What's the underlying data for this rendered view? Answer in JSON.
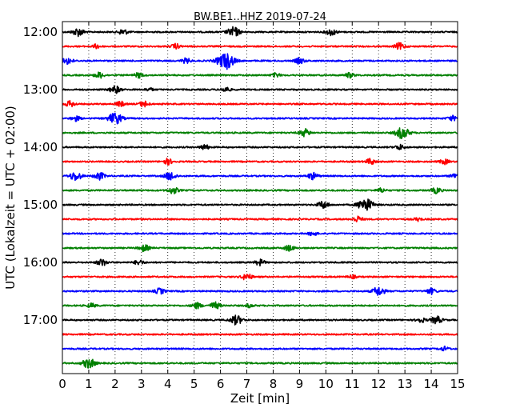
{
  "chart_data": {
    "type": "line",
    "title": "BW.BE1..HHZ 2019-07-24",
    "xlabel": "Zeit  [min]",
    "ylabel": "UTC (Lokalzeit = UTC + 02:00)",
    "xlim": [
      0,
      15
    ],
    "x_ticks": [
      "0",
      "1",
      "2",
      "3",
      "4",
      "5",
      "6",
      "7",
      "8",
      "9",
      "10",
      "11",
      "12",
      "13",
      "14",
      "15"
    ],
    "y_tick_labels": [
      "12:00",
      "13:00",
      "14:00",
      "15:00",
      "16:00",
      "17:00"
    ],
    "grid": "vertical dotted",
    "colors": [
      "#000000",
      "#ff0000",
      "#0000ff",
      "#008000"
    ],
    "traces": [
      {
        "start": "12:00",
        "color": "#000000",
        "events": [
          [
            0.6,
            0.5
          ],
          [
            2.3,
            0.35
          ],
          [
            6.5,
            0.6
          ],
          [
            10.2,
            0.4
          ]
        ]
      },
      {
        "start": "12:15",
        "color": "#ff0000",
        "events": [
          [
            1.3,
            0.25
          ],
          [
            4.3,
            0.3
          ],
          [
            12.8,
            0.4
          ]
        ]
      },
      {
        "start": "12:30",
        "color": "#0000ff",
        "events": [
          [
            4.7,
            0.3
          ],
          [
            6.2,
            1.0
          ],
          [
            9.0,
            0.35
          ],
          [
            0.2,
            0.4
          ]
        ]
      },
      {
        "start": "12:45",
        "color": "#008000",
        "events": [
          [
            1.4,
            0.35
          ],
          [
            2.9,
            0.3
          ],
          [
            8.1,
            0.25
          ],
          [
            10.9,
            0.3
          ]
        ]
      },
      {
        "start": "13:00",
        "color": "#000000",
        "events": [
          [
            2.0,
            0.45
          ],
          [
            3.3,
            0.2
          ],
          [
            6.2,
            0.3
          ]
        ]
      },
      {
        "start": "13:15",
        "color": "#ff0000",
        "events": [
          [
            0.3,
            0.35
          ],
          [
            2.2,
            0.3
          ],
          [
            3.1,
            0.35
          ]
        ]
      },
      {
        "start": "13:30",
        "color": "#0000ff",
        "events": [
          [
            2.0,
            0.7
          ],
          [
            0.5,
            0.3
          ],
          [
            14.8,
            0.3
          ]
        ]
      },
      {
        "start": "13:45",
        "color": "#008000",
        "events": [
          [
            9.2,
            0.45
          ],
          [
            12.9,
            0.7
          ]
        ]
      },
      {
        "start": "14:00",
        "color": "#000000",
        "events": [
          [
            5.4,
            0.3
          ],
          [
            12.8,
            0.3
          ]
        ]
      },
      {
        "start": "14:15",
        "color": "#ff0000",
        "events": [
          [
            4.0,
            0.35
          ],
          [
            11.7,
            0.35
          ],
          [
            14.5,
            0.3
          ]
        ]
      },
      {
        "start": "14:30",
        "color": "#0000ff",
        "events": [
          [
            0.5,
            0.55
          ],
          [
            1.4,
            0.45
          ],
          [
            4.1,
            0.5
          ],
          [
            9.5,
            0.4
          ],
          [
            14.9,
            0.3
          ]
        ]
      },
      {
        "start": "14:45",
        "color": "#008000",
        "events": [
          [
            4.2,
            0.4
          ],
          [
            12.1,
            0.25
          ],
          [
            14.2,
            0.35
          ]
        ]
      },
      {
        "start": "15:00",
        "color": "#000000",
        "events": [
          [
            9.9,
            0.45
          ],
          [
            11.5,
            0.8
          ]
        ]
      },
      {
        "start": "15:15",
        "color": "#ff0000",
        "events": [
          [
            11.2,
            0.35
          ],
          [
            13.5,
            0.2
          ]
        ]
      },
      {
        "start": "15:30",
        "color": "#0000ff",
        "events": [
          [
            9.5,
            0.25
          ]
        ]
      },
      {
        "start": "15:45",
        "color": "#008000",
        "events": [
          [
            3.1,
            0.4
          ],
          [
            8.6,
            0.35
          ]
        ]
      },
      {
        "start": "16:00",
        "color": "#000000",
        "events": [
          [
            1.5,
            0.4
          ],
          [
            2.9,
            0.3
          ],
          [
            7.5,
            0.35
          ]
        ]
      },
      {
        "start": "16:15",
        "color": "#ff0000",
        "events": [
          [
            7.0,
            0.4
          ],
          [
            11.0,
            0.2
          ]
        ]
      },
      {
        "start": "16:30",
        "color": "#0000ff",
        "events": [
          [
            3.7,
            0.35
          ],
          [
            12.0,
            0.55
          ],
          [
            14.0,
            0.35
          ]
        ]
      },
      {
        "start": "16:45",
        "color": "#008000",
        "events": [
          [
            1.1,
            0.25
          ],
          [
            5.1,
            0.35
          ],
          [
            5.8,
            0.4
          ],
          [
            7.1,
            0.2
          ]
        ]
      },
      {
        "start": "17:00",
        "color": "#000000",
        "events": [
          [
            6.6,
            0.55
          ],
          [
            13.6,
            0.3
          ],
          [
            14.2,
            0.45
          ]
        ]
      },
      {
        "start": "17:15",
        "color": "#ff0000",
        "events": []
      },
      {
        "start": "17:30",
        "color": "#0000ff",
        "events": [
          [
            14.5,
            0.25
          ]
        ]
      },
      {
        "start": "17:45",
        "color": "#008000",
        "events": [
          [
            1.0,
            0.6
          ]
        ]
      }
    ]
  }
}
